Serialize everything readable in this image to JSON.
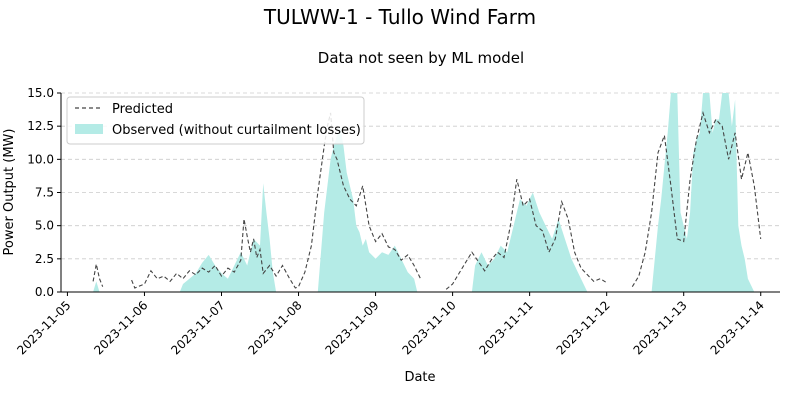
{
  "chart_data": {
    "type": "area",
    "title": "TULWW-1 - Tullo Wind Farm",
    "subtitle": "Data not seen by ML model",
    "xlabel": "Date",
    "ylabel": "Power Output (MW)",
    "ylim": [
      0,
      15
    ],
    "xlim": [
      "2023-11-04 22:00",
      "2023-11-14 06:00"
    ],
    "grid": "horizontal-dashed",
    "legend_position": "top-left",
    "x_ticks": [
      "2023-11-05",
      "2023-11-06",
      "2023-11-07",
      "2023-11-08",
      "2023-11-09",
      "2023-11-10",
      "2023-11-11",
      "2023-11-12",
      "2023-11-13",
      "2023-11-14"
    ],
    "y_ticks": [
      "0.0",
      "2.5",
      "5.0",
      "7.5",
      "10.0",
      "12.5",
      "15.0"
    ],
    "colors": {
      "observed": "#b4ebe6",
      "predicted": "#444444"
    },
    "series": [
      {
        "name": "Predicted",
        "style": "dashed-line",
        "points": [
          [
            "2023-11-05 08:00",
            0.8
          ],
          [
            "2023-11-05 09:00",
            2.1
          ],
          [
            "2023-11-05 10:00",
            1.0
          ],
          [
            "2023-11-05 11:00",
            0.4
          ],
          [
            "2023-11-05 20:00",
            0.9
          ],
          [
            "2023-11-05 21:00",
            0.3
          ],
          [
            "2023-11-06 00:00",
            0.6
          ],
          [
            "2023-11-06 02:00",
            1.6
          ],
          [
            "2023-11-06 04:00",
            1.0
          ],
          [
            "2023-11-06 06:00",
            1.2
          ],
          [
            "2023-11-06 08:00",
            0.8
          ],
          [
            "2023-11-06 10:00",
            1.4
          ],
          [
            "2023-11-06 12:00",
            1.0
          ],
          [
            "2023-11-06 14:00",
            1.6
          ],
          [
            "2023-11-06 16:00",
            1.3
          ],
          [
            "2023-11-06 18:00",
            1.8
          ],
          [
            "2023-11-06 20:00",
            1.5
          ],
          [
            "2023-11-06 22:00",
            2.0
          ],
          [
            "2023-11-07 00:00",
            1.2
          ],
          [
            "2023-11-07 02:00",
            1.8
          ],
          [
            "2023-11-07 04:00",
            1.5
          ],
          [
            "2023-11-07 06:00",
            2.4
          ],
          [
            "2023-11-07 07:00",
            5.5
          ],
          [
            "2023-11-07 08:00",
            4.2
          ],
          [
            "2023-11-07 09:00",
            3.0
          ],
          [
            "2023-11-07 10:00",
            4.0
          ],
          [
            "2023-11-07 11:00",
            2.6
          ],
          [
            "2023-11-07 12:00",
            3.2
          ],
          [
            "2023-11-07 13:00",
            1.4
          ],
          [
            "2023-11-07 15:00",
            2.0
          ],
          [
            "2023-11-07 17:00",
            1.2
          ],
          [
            "2023-11-07 19:00",
            2.0
          ],
          [
            "2023-11-07 21:00",
            1.1
          ],
          [
            "2023-11-07 23:00",
            0.3
          ],
          [
            "2023-11-08 00:00",
            0.4
          ],
          [
            "2023-11-08 02:00",
            1.5
          ],
          [
            "2023-11-08 04:00",
            3.5
          ],
          [
            "2023-11-08 06:00",
            7.5
          ],
          [
            "2023-11-08 08:00",
            11.0
          ],
          [
            "2023-11-08 09:00",
            12.5
          ],
          [
            "2023-11-08 10:00",
            13.5
          ],
          [
            "2023-11-08 11:00",
            10.5
          ],
          [
            "2023-11-08 12:00",
            10.0
          ],
          [
            "2023-11-08 14:00",
            8.0
          ],
          [
            "2023-11-08 16:00",
            7.0
          ],
          [
            "2023-11-08 18:00",
            6.5
          ],
          [
            "2023-11-08 20:00",
            8.0
          ],
          [
            "2023-11-08 22:00",
            5.0
          ],
          [
            "2023-11-09 00:00",
            3.8
          ],
          [
            "2023-11-09 02:00",
            4.4
          ],
          [
            "2023-11-09 04:00",
            3.4
          ],
          [
            "2023-11-09 06:00",
            3.2
          ],
          [
            "2023-11-09 08:00",
            2.4
          ],
          [
            "2023-11-09 10:00",
            2.8
          ],
          [
            "2023-11-09 12:00",
            2.0
          ],
          [
            "2023-11-09 14:00",
            1.0
          ],
          [
            "2023-11-09 22:00",
            0.2
          ],
          [
            "2023-11-10 00:00",
            0.6
          ],
          [
            "2023-11-10 02:00",
            1.4
          ],
          [
            "2023-11-10 04:00",
            2.2
          ],
          [
            "2023-11-10 06:00",
            3.0
          ],
          [
            "2023-11-10 08:00",
            2.3
          ],
          [
            "2023-11-10 10:00",
            1.6
          ],
          [
            "2023-11-10 12:00",
            2.4
          ],
          [
            "2023-11-10 14:00",
            3.0
          ],
          [
            "2023-11-10 16:00",
            2.6
          ],
          [
            "2023-11-10 18:00",
            5.0
          ],
          [
            "2023-11-10 20:00",
            8.5
          ],
          [
            "2023-11-10 22:00",
            6.5
          ],
          [
            "2023-11-11 00:00",
            7.0
          ],
          [
            "2023-11-11 02:00",
            5.0
          ],
          [
            "2023-11-11 04:00",
            4.6
          ],
          [
            "2023-11-11 06:00",
            3.0
          ],
          [
            "2023-11-11 08:00",
            4.0
          ],
          [
            "2023-11-11 10:00",
            6.8
          ],
          [
            "2023-11-11 12:00",
            5.5
          ],
          [
            "2023-11-11 14:00",
            3.0
          ],
          [
            "2023-11-11 16:00",
            1.8
          ],
          [
            "2023-11-11 18:00",
            1.3
          ],
          [
            "2023-11-11 20:00",
            0.8
          ],
          [
            "2023-11-11 22:00",
            1.0
          ],
          [
            "2023-11-12 00:00",
            0.7
          ],
          [
            "2023-11-12 08:00",
            0.4
          ],
          [
            "2023-11-12 10:00",
            1.2
          ],
          [
            "2023-11-12 12:00",
            3.0
          ],
          [
            "2023-11-12 14:00",
            6.0
          ],
          [
            "2023-11-12 16:00",
            10.5
          ],
          [
            "2023-11-12 18:00",
            11.8
          ],
          [
            "2023-11-12 20:00",
            8.0
          ],
          [
            "2023-11-12 22:00",
            4.0
          ],
          [
            "2023-11-13 00:00",
            3.8
          ],
          [
            "2023-11-13 02:00",
            8.5
          ],
          [
            "2023-11-13 04:00",
            11.5
          ],
          [
            "2023-11-13 06:00",
            13.5
          ],
          [
            "2023-11-13 08:00",
            12.0
          ],
          [
            "2023-11-13 10:00",
            13.0
          ],
          [
            "2023-11-13 12:00",
            12.5
          ],
          [
            "2023-11-13 14:00",
            10.0
          ],
          [
            "2023-11-13 16:00",
            12.0
          ],
          [
            "2023-11-13 18:00",
            8.5
          ],
          [
            "2023-11-13 20:00",
            10.5
          ],
          [
            "2023-11-13 22:00",
            8.0
          ],
          [
            "2023-11-14 00:00",
            4.0
          ]
        ]
      },
      {
        "name": "Observed (without curtailment losses)",
        "style": "filled-area",
        "points": [
          [
            "2023-11-05 08:00",
            0.0
          ],
          [
            "2023-11-05 09:00",
            0.8
          ],
          [
            "2023-11-05 10:00",
            0.0
          ],
          [
            "2023-11-06 11:00",
            0.0
          ],
          [
            "2023-11-06 12:00",
            0.6
          ],
          [
            "2023-11-06 14:00",
            1.0
          ],
          [
            "2023-11-06 16:00",
            1.4
          ],
          [
            "2023-11-06 18:00",
            2.2
          ],
          [
            "2023-11-06 20:00",
            2.8
          ],
          [
            "2023-11-06 22:00",
            2.0
          ],
          [
            "2023-11-07 00:00",
            1.4
          ],
          [
            "2023-11-07 02:00",
            1.0
          ],
          [
            "2023-11-07 04:00",
            2.0
          ],
          [
            "2023-11-07 06:00",
            3.0
          ],
          [
            "2023-11-07 08:00",
            2.0
          ],
          [
            "2023-11-07 10:00",
            4.0
          ],
          [
            "2023-11-07 12:00",
            3.5
          ],
          [
            "2023-11-07 13:00",
            8.2
          ],
          [
            "2023-11-07 14:00",
            6.0
          ],
          [
            "2023-11-07 15:00",
            4.0
          ],
          [
            "2023-11-07 16:00",
            1.5
          ],
          [
            "2023-11-07 17:00",
            0.0
          ],
          [
            "2023-11-08 06:00",
            0.0
          ],
          [
            "2023-11-08 07:00",
            3.0
          ],
          [
            "2023-11-08 08:00",
            6.0
          ],
          [
            "2023-11-08 09:00",
            8.0
          ],
          [
            "2023-11-08 10:00",
            10.0
          ],
          [
            "2023-11-08 11:00",
            11.0
          ],
          [
            "2023-11-08 12:00",
            11.8
          ],
          [
            "2023-11-08 13:00",
            12.5
          ],
          [
            "2023-11-08 14:00",
            11.0
          ],
          [
            "2023-11-08 15:00",
            9.0
          ],
          [
            "2023-11-08 16:00",
            8.0
          ],
          [
            "2023-11-08 17:00",
            7.0
          ],
          [
            "2023-11-08 18:00",
            5.0
          ],
          [
            "2023-11-08 19:00",
            4.5
          ],
          [
            "2023-11-08 20:00",
            3.5
          ],
          [
            "2023-11-08 21:00",
            4.0
          ],
          [
            "2023-11-08 22:00",
            3.0
          ],
          [
            "2023-11-09 00:00",
            2.5
          ],
          [
            "2023-11-09 02:00",
            3.0
          ],
          [
            "2023-11-09 04:00",
            2.8
          ],
          [
            "2023-11-09 06:00",
            3.5
          ],
          [
            "2023-11-09 08:00",
            2.5
          ],
          [
            "2023-11-09 10:00",
            1.5
          ],
          [
            "2023-11-09 12:00",
            1.0
          ],
          [
            "2023-11-09 13:00",
            0.0
          ],
          [
            "2023-11-10 06:00",
            0.0
          ],
          [
            "2023-11-10 07:00",
            2.0
          ],
          [
            "2023-11-10 09:00",
            3.0
          ],
          [
            "2023-11-10 11:00",
            2.0
          ],
          [
            "2023-11-10 13:00",
            2.5
          ],
          [
            "2023-11-10 15:00",
            3.5
          ],
          [
            "2023-11-10 17:00",
            3.0
          ],
          [
            "2023-11-10 19:00",
            5.0
          ],
          [
            "2023-11-10 21:00",
            7.0
          ],
          [
            "2023-11-10 23:00",
            6.5
          ],
          [
            "2023-11-11 01:00",
            7.5
          ],
          [
            "2023-11-11 03:00",
            6.0
          ],
          [
            "2023-11-11 05:00",
            5.0
          ],
          [
            "2023-11-11 07:00",
            4.0
          ],
          [
            "2023-11-11 09:00",
            5.5
          ],
          [
            "2023-11-11 11:00",
            4.0
          ],
          [
            "2023-11-11 13:00",
            2.5
          ],
          [
            "2023-11-11 15:00",
            1.5
          ],
          [
            "2023-11-11 17:00",
            0.5
          ],
          [
            "2023-11-11 18:00",
            0.0
          ],
          [
            "2023-11-12 14:00",
            0.0
          ],
          [
            "2023-11-12 15:00",
            2.5
          ],
          [
            "2023-11-12 16:00",
            5.0
          ],
          [
            "2023-11-12 17:00",
            7.0
          ],
          [
            "2023-11-12 18:00",
            9.5
          ],
          [
            "2023-11-12 19:00",
            12.0
          ],
          [
            "2023-11-12 20:00",
            15.0
          ],
          [
            "2023-11-12 22:00",
            15.0
          ],
          [
            "2023-11-12 23:00",
            6.0
          ],
          [
            "2023-11-13 00:00",
            5.0
          ],
          [
            "2023-11-13 01:00",
            4.0
          ],
          [
            "2023-11-13 02:00",
            6.0
          ],
          [
            "2023-11-13 03:00",
            10.5
          ],
          [
            "2023-11-13 04:00",
            11.5
          ],
          [
            "2023-11-13 05:00",
            12.0
          ],
          [
            "2023-11-13 06:00",
            15.0
          ],
          [
            "2023-11-13 08:00",
            15.0
          ],
          [
            "2023-11-13 09:00",
            12.0
          ],
          [
            "2023-11-13 10:00",
            13.0
          ],
          [
            "2023-11-13 11:00",
            13.0
          ],
          [
            "2023-11-13 12:00",
            15.0
          ],
          [
            "2023-11-13 14:00",
            15.0
          ],
          [
            "2023-11-13 15:00",
            12.5
          ],
          [
            "2023-11-13 16:00",
            14.5
          ],
          [
            "2023-11-13 17:00",
            5.0
          ],
          [
            "2023-11-13 18:00",
            3.5
          ],
          [
            "2023-11-13 19:00",
            2.5
          ],
          [
            "2023-11-13 20:00",
            1.0
          ],
          [
            "2023-11-13 21:00",
            0.5
          ],
          [
            "2023-11-13 22:00",
            0.0
          ]
        ]
      }
    ]
  }
}
